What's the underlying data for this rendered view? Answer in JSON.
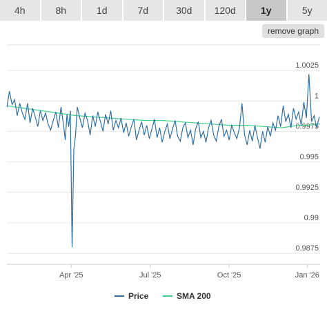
{
  "tabs": [
    {
      "label": "4h",
      "active": false
    },
    {
      "label": "8h",
      "active": false
    },
    {
      "label": "1d",
      "active": false
    },
    {
      "label": "7d",
      "active": false
    },
    {
      "label": "30d",
      "active": false
    },
    {
      "label": "120d",
      "active": false
    },
    {
      "label": "1y",
      "active": true
    },
    {
      "label": "5y",
      "active": false
    }
  ],
  "remove_graph_label": "remove graph",
  "colors": {
    "price": "#2f6fa3",
    "sma": "#3fd08a",
    "grid": "#e6e6e6"
  },
  "chart_data": {
    "type": "line",
    "x_ticks": [
      "Apr '25",
      "Jul '25",
      "Oct '25",
      "Jan '26"
    ],
    "y_ticks": [
      "1.0025",
      "1",
      "0.9975",
      "0.995",
      "0.9925",
      "0.99",
      "0.9875"
    ],
    "ylim": [
      0.9866,
      1.0046
    ],
    "xlim": [
      0,
      365
    ],
    "series": [
      {
        "name": "Price",
        "x": [
          0,
          3,
          6,
          9,
          12,
          15,
          18,
          21,
          24,
          27,
          30,
          33,
          36,
          39,
          42,
          45,
          48,
          51,
          54,
          57,
          60,
          63,
          66,
          68,
          70,
          72,
          74,
          76,
          78,
          80,
          82,
          85,
          88,
          91,
          94,
          97,
          100,
          103,
          106,
          109,
          112,
          115,
          118,
          121,
          124,
          127,
          130,
          133,
          136,
          139,
          142,
          145,
          148,
          151,
          154,
          157,
          160,
          163,
          166,
          169,
          172,
          175,
          178,
          181,
          184,
          187,
          190,
          193,
          196,
          199,
          202,
          205,
          208,
          211,
          214,
          217,
          220,
          223,
          226,
          229,
          232,
          235,
          238,
          241,
          244,
          247,
          250,
          253,
          256,
          259,
          262,
          265,
          268,
          271,
          274,
          277,
          280,
          283,
          286,
          289,
          292,
          295,
          298,
          301,
          304,
          307,
          310,
          313,
          316,
          319,
          322,
          325,
          328,
          331,
          334,
          337,
          340,
          343,
          346,
          349,
          352,
          355,
          358,
          361,
          364
        ],
        "y": [
          0.9995,
          1.0008,
          0.9997,
          1.0001,
          0.9988,
          0.9998,
          0.999,
          0.9985,
          0.9998,
          0.9982,
          0.9994,
          0.9987,
          0.9979,
          0.9992,
          0.9984,
          0.999,
          0.9981,
          0.9976,
          0.9984,
          0.9991,
          0.9978,
          0.9995,
          0.998,
          0.9968,
          0.9989,
          0.9979,
          0.9992,
          0.988,
          0.996,
          0.9972,
          0.9995,
          0.9986,
          0.9978,
          0.999,
          0.9984,
          0.9972,
          0.9988,
          0.9979,
          0.9991,
          0.9983,
          0.9975,
          0.9989,
          0.9981,
          0.9992,
          0.9976,
          0.9984,
          0.9978,
          0.9986,
          0.9974,
          0.9982,
          0.9971,
          0.9979,
          0.9985,
          0.9968,
          0.9976,
          0.9983,
          0.9972,
          0.998,
          0.9969,
          0.9977,
          0.9985,
          0.997,
          0.9978,
          0.9966,
          0.9975,
          0.9981,
          0.9969,
          0.9977,
          0.9984,
          0.9971,
          0.9967,
          0.9978,
          0.9982,
          0.997,
          0.9976,
          0.9964,
          0.9977,
          0.9983,
          0.997,
          0.9975,
          0.9966,
          0.9978,
          0.9984,
          0.9972,
          0.9967,
          0.9979,
          0.9985,
          0.9971,
          0.9976,
          0.9968,
          0.998,
          0.9974,
          0.9969,
          0.9978,
          0.9998,
          0.9972,
          0.9964,
          0.9976,
          0.9967,
          0.998,
          0.997,
          0.9961,
          0.9975,
          0.9966,
          0.9979,
          0.9971,
          0.9982,
          0.9976,
          0.9988,
          0.9979,
          0.9996,
          0.9983,
          0.9989,
          0.9978,
          0.9994,
          0.9985,
          0.9991,
          0.998,
          0.9999,
          0.9986,
          1.0022,
          0.9983,
          0.9988,
          0.9978,
          0.9987
        ]
      },
      {
        "name": "SMA 200",
        "x": [
          0,
          20,
          40,
          60,
          80,
          100,
          120,
          140,
          160,
          180,
          200,
          220,
          240,
          260,
          280,
          300,
          320,
          330,
          340,
          350,
          360,
          365
        ],
        "y": [
          0.9996,
          0.9994,
          0.9992,
          0.999,
          0.9988,
          0.9987,
          0.9986,
          0.9985,
          0.9984,
          0.9984,
          0.9983,
          0.9982,
          0.9981,
          0.998,
          0.998,
          0.9979,
          0.9978,
          0.9979,
          0.998,
          0.998,
          0.9981,
          0.9981
        ]
      }
    ]
  }
}
